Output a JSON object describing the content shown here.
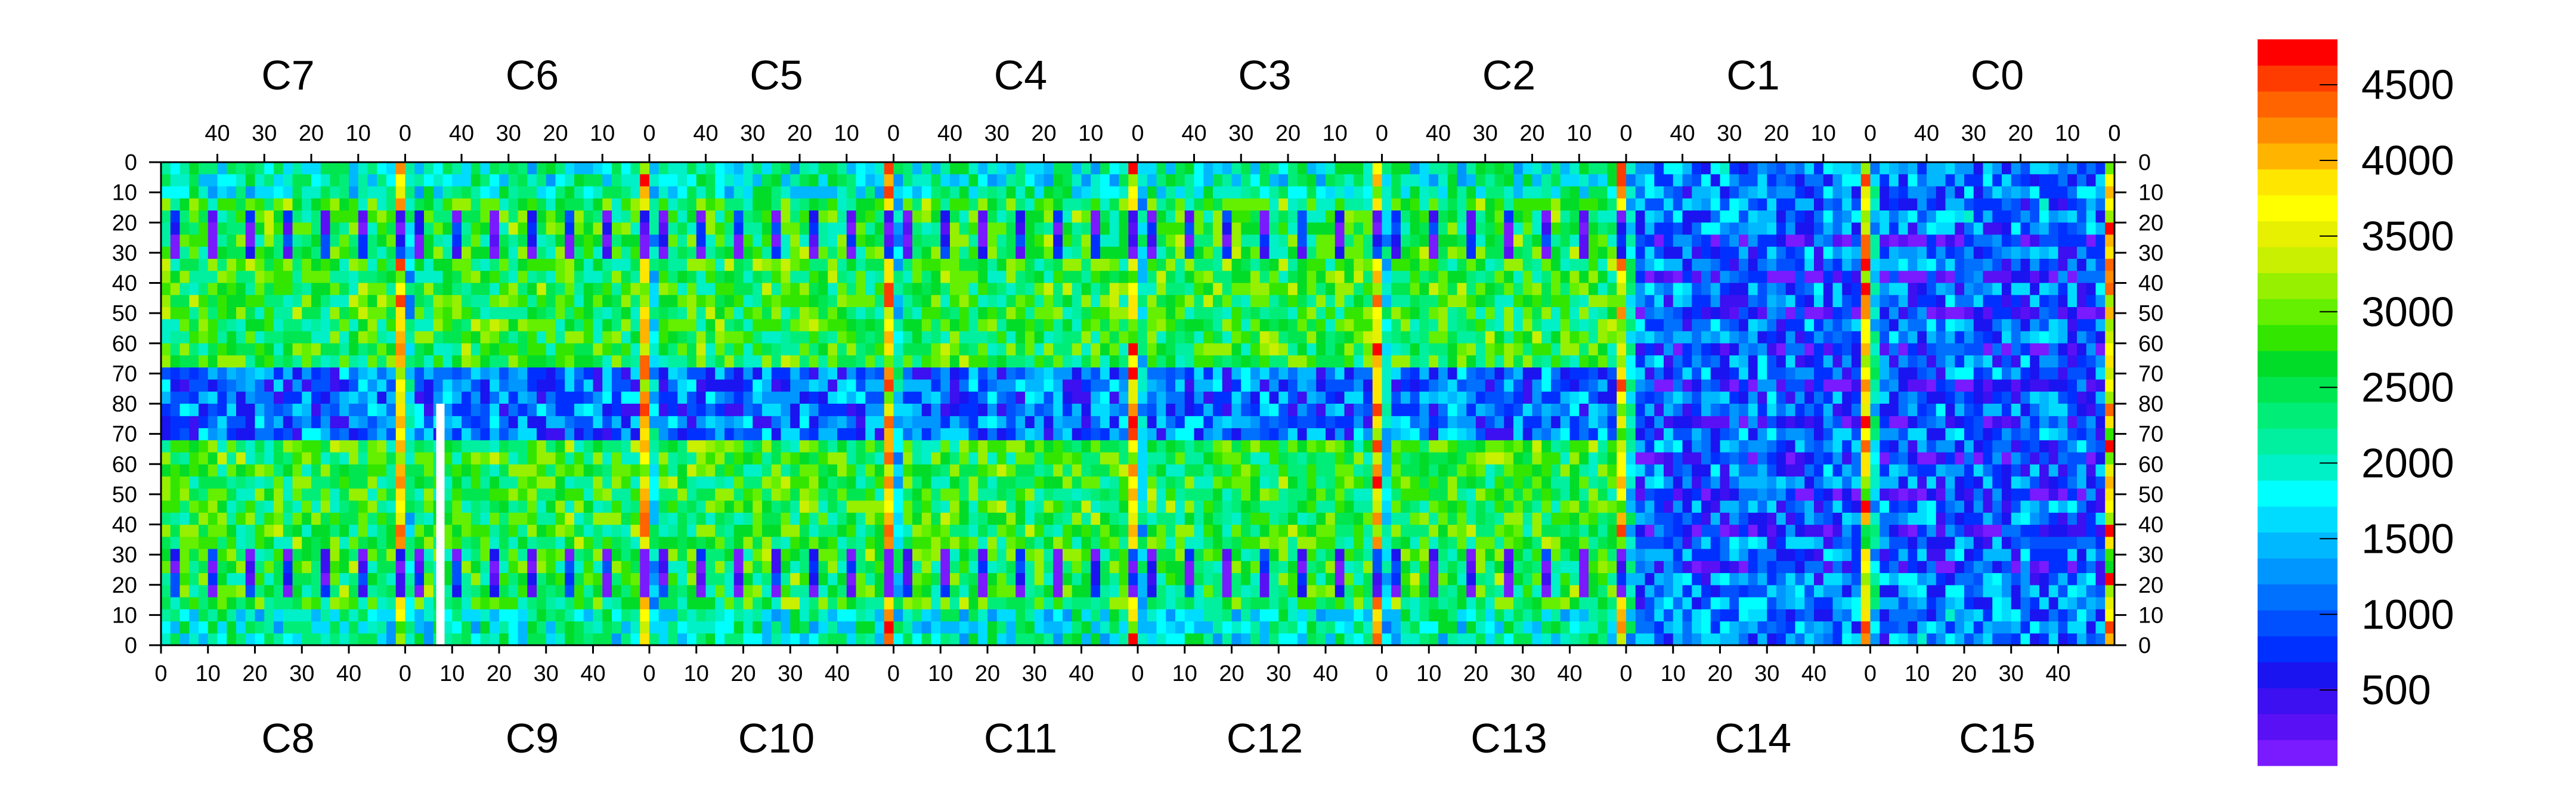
{
  "chart_data": {
    "type": "heatmap",
    "title": "",
    "xlabel": "",
    "ylabel": "",
    "top_chips": [
      "C7",
      "C6",
      "C5",
      "C4",
      "C3",
      "C2",
      "C1",
      "C0"
    ],
    "bottom_chips": [
      "C8",
      "C9",
      "C10",
      "C11",
      "C12",
      "C13",
      "C14",
      "C15"
    ],
    "top_column_ticks": [
      40,
      30,
      20,
      10,
      0
    ],
    "bottom_column_ticks": [
      0,
      10,
      20,
      30,
      40
    ],
    "row_ticks_top_half": [
      0,
      10,
      20,
      30,
      40,
      50,
      60,
      70,
      80
    ],
    "row_ticks_bottom_half": [
      70,
      60,
      50,
      40,
      30,
      20,
      10,
      0
    ],
    "chip_columns": 52,
    "chip_rows": 80,
    "z_range": [
      0,
      4800
    ],
    "colorbar_ticks": [
      500,
      1000,
      1500,
      2000,
      2500,
      3000,
      3500,
      4000,
      4500
    ],
    "colorbar_colors": [
      "#7a1aff",
      "#5a10f5",
      "#3c10f0",
      "#1a14f0",
      "#0030ff",
      "#0050ff",
      "#0070ff",
      "#0096ff",
      "#00b8ff",
      "#00dcff",
      "#00ffff",
      "#00f0c8",
      "#00f0a0",
      "#00ee78",
      "#00e650",
      "#00dc28",
      "#32e600",
      "#64f000",
      "#96f000",
      "#c8f000",
      "#e6f000",
      "#ffff00",
      "#ffe600",
      "#ffb400",
      "#ff8c00",
      "#ff6400",
      "#ff3c00",
      "#ff0000"
    ],
    "chip_profile": {
      "gap_columns": [
        0
      ],
      "gap_value": 3800,
      "outer_columns_value": 2600,
      "interior_upper_rows_value": 2600,
      "interior_center_rows_value": 1100,
      "pad_value": 300
    },
    "grid": false,
    "legend": "colorbar-right"
  }
}
